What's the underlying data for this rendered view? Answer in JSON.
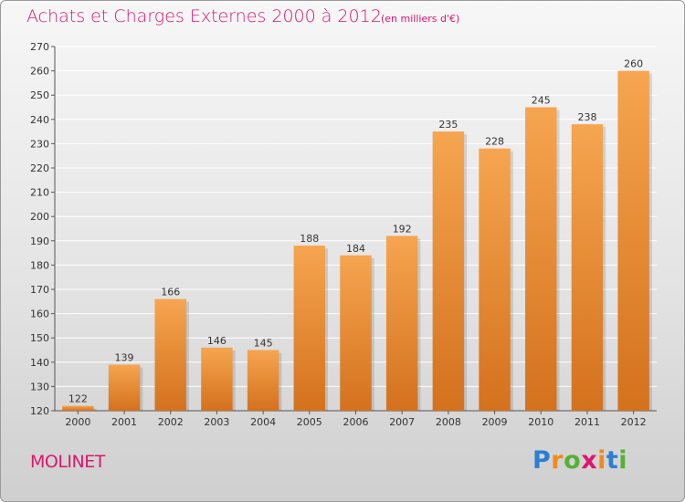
{
  "header": {
    "title": "Achats et Charges Externes 2000 à 2012",
    "subtitle": "(en milliers d'€)"
  },
  "footer": {
    "commune": "MOLINET",
    "logo_parts": [
      "P",
      "r",
      "o",
      "x",
      "i",
      "t",
      "i"
    ]
  },
  "colors": {
    "title": "#e0156d",
    "bar_top": "#f6a550",
    "bar_bottom": "#d4711d",
    "grid": "#ffffff"
  },
  "chart_data": {
    "type": "bar",
    "title": "Achats et Charges Externes 2000 à 2012",
    "subtitle": "(en milliers d'€)",
    "categories": [
      "2000",
      "2001",
      "2002",
      "2003",
      "2004",
      "2005",
      "2006",
      "2007",
      "2008",
      "2009",
      "2010",
      "2011",
      "2012"
    ],
    "values": [
      122,
      139,
      166,
      146,
      145,
      188,
      184,
      192,
      235,
      228,
      245,
      238,
      260
    ],
    "ylim": [
      120,
      270
    ],
    "yticks": [
      120,
      130,
      140,
      150,
      160,
      170,
      180,
      190,
      200,
      210,
      220,
      230,
      240,
      250,
      260,
      270
    ],
    "grid": true,
    "data_labels": true,
    "legend": "none"
  }
}
